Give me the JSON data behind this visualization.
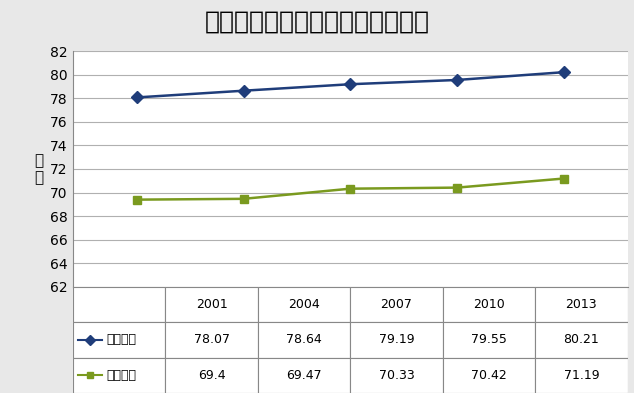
{
  "title": "男性の平均寿命と健康寿命の推移",
  "years": [
    2001,
    2004,
    2007,
    2010,
    2013
  ],
  "avg_life": [
    78.07,
    78.64,
    79.19,
    79.55,
    80.21
  ],
  "healthy_life": [
    69.4,
    69.47,
    70.33,
    70.42,
    71.19
  ],
  "avg_life_color": "#1f3d7a",
  "healthy_life_color": "#7a9a1f",
  "ylim": [
    62,
    82
  ],
  "yticks": [
    62,
    64,
    66,
    68,
    70,
    72,
    74,
    76,
    78,
    80,
    82
  ],
  "background_color": "#e8e8e8",
  "plot_bg_color": "#ffffff",
  "grid_color": "#b0b0b0",
  "title_fontsize": 18,
  "axis_fontsize": 10,
  "table_fontsize": 9,
  "ylabel": "年\n齢",
  "table_avg_label": "平均寿命",
  "table_healthy_label": "健康寿命",
  "table_avg_values": [
    "78.07",
    "78.64",
    "79.19",
    "79.55",
    "80.21"
  ],
  "table_healthy_values": [
    "69.4",
    "69.47",
    "70.33",
    "70.42",
    "71.19"
  ]
}
